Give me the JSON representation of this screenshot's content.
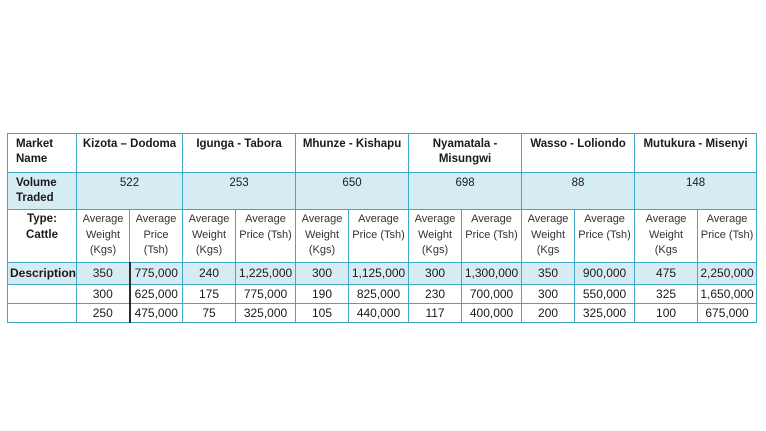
{
  "header": {
    "market_label": "Market Name",
    "volume_label": "Volume Traded",
    "type_label": "Type: Cattle",
    "description_label": "Description"
  },
  "markets": [
    {
      "name": "Kizota – Dodoma",
      "volume": "522"
    },
    {
      "name": "Igunga  - Tabora",
      "volume": "253"
    },
    {
      "name": "Mhunze - Kishapu",
      "volume": "650"
    },
    {
      "name": "Nyamatala - Misungwi",
      "volume": "698"
    },
    {
      "name": "Wasso - Loliondo",
      "volume": "88"
    },
    {
      "name": "Mutukura - Misenyi",
      "volume": "148"
    }
  ],
  "subheaders": [
    {
      "weight": "Average Weight (Kgs)",
      "price": "Average Price (Tsh)"
    },
    {
      "weight": "Average Weight (Kgs)",
      "price": "Average Price (Tsh)"
    },
    {
      "weight": "Average Weight (Kgs)",
      "price": "Average Price (Tsh)"
    },
    {
      "weight": "Average Weight (Kgs)",
      "price": "Average Price (Tsh)"
    },
    {
      "weight": "Average Weight (Kgs",
      "price": "Average Price (Tsh)"
    },
    {
      "weight": "Average Weight (Kgs",
      "price": "Average Price (Tsh)"
    }
  ],
  "rows": [
    [
      "350",
      "775,000",
      "240",
      "1,225,000",
      "300",
      "1,125,000",
      "300",
      "1,300,000",
      "350",
      "900,000",
      "475",
      "2,250,000"
    ],
    [
      "300",
      "625,000",
      "175",
      "775,000",
      "190",
      "825,000",
      "230",
      "700,000",
      "300",
      "550,000",
      "325",
      "1,650,000"
    ],
    [
      "250",
      "475,000",
      "75",
      "325,000",
      "105",
      "440,000",
      "117",
      "400,000",
      "200",
      "325,000",
      "100",
      "675,000"
    ]
  ]
}
